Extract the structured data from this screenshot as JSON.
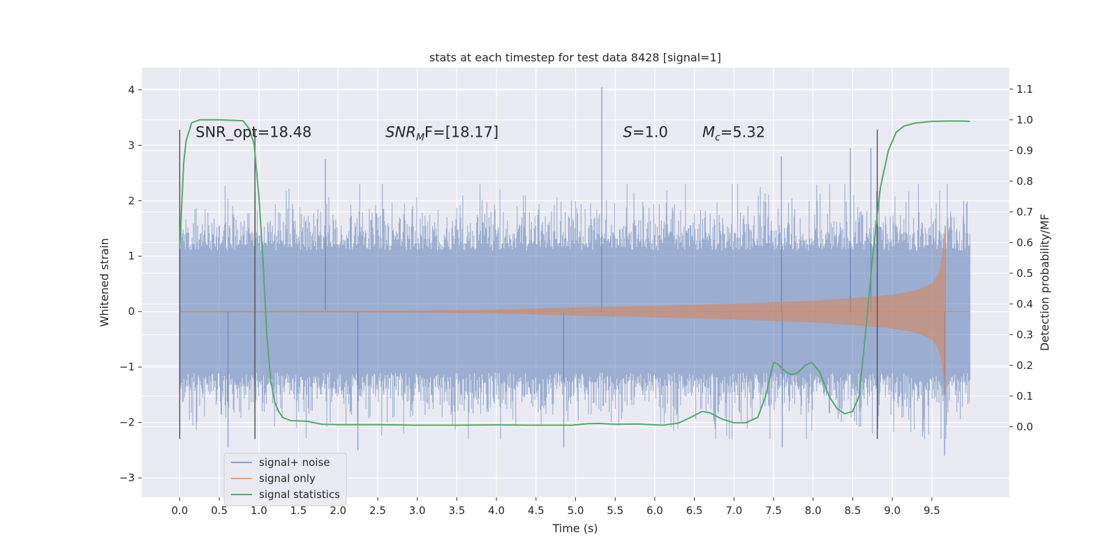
{
  "chart_data": {
    "type": "line",
    "title": "stats at each timestep for test data 8428 [signal=1]",
    "xlabel": "Time (s)",
    "ylabel": "Whitened strain",
    "y2label": "Detection probability/MF",
    "xlim": [
      -0.48,
      10.48
    ],
    "ylim": [
      -3.35,
      4.4
    ],
    "y2lim": [
      -0.23,
      1.17
    ],
    "xticks": [
      0.0,
      0.5,
      1.0,
      1.5,
      2.0,
      2.5,
      3.0,
      3.5,
      4.0,
      4.5,
      5.0,
      5.5,
      6.0,
      6.5,
      7.0,
      7.5,
      8.0,
      8.5,
      9.0,
      9.5
    ],
    "xtick_labels": [
      "0.0",
      "0.5",
      "1.0",
      "1.5",
      "2.0",
      "2.5",
      "3.0",
      "3.5",
      "4.0",
      "4.5",
      "5.0",
      "5.5",
      "6.0",
      "6.5",
      "7.0",
      "7.5",
      "8.0",
      "8.5",
      "9.0",
      "9.5"
    ],
    "yticks": [
      -3,
      -2,
      -1,
      0,
      1,
      2,
      3,
      4
    ],
    "ytick_labels": [
      "−3",
      "−2",
      "−1",
      "0",
      "1",
      "2",
      "3",
      "4"
    ],
    "y2ticks": [
      0.0,
      0.1,
      0.2,
      0.3,
      0.4,
      0.5,
      0.6,
      0.7,
      0.8,
      0.9,
      1.0,
      1.1
    ],
    "y2tick_labels": [
      "0.0",
      "0.1",
      "0.2",
      "0.3",
      "0.4",
      "0.5",
      "0.6",
      "0.7",
      "0.8",
      "0.9",
      "1.0",
      "1.1"
    ],
    "grid": true,
    "legend_position": "lower-left",
    "colors": {
      "noise": "#4c72b0",
      "signal": "#dd8452",
      "stats": "#55a868",
      "marker": "#555555",
      "background": "#eaeaf2",
      "grid": "#ffffff"
    },
    "series": [
      {
        "name": "signal+ noise",
        "kind": "noise-band",
        "t_range": [
          0.0,
          9.98
        ],
        "envelope_approx": [
          [
            0.0,
            -1.5,
            1.5
          ],
          [
            5.0,
            -1.5,
            1.5
          ],
          [
            9.98,
            -1.5,
            1.5
          ]
        ],
        "peaks": [
          [
            5.33,
            4.05
          ],
          [
            0.61,
            -2.45
          ],
          [
            2.25,
            -2.5
          ],
          [
            4.85,
            -2.45
          ],
          [
            7.61,
            -2.45
          ],
          [
            9.66,
            -2.6
          ],
          [
            1.84,
            2.75
          ],
          [
            8.73,
            2.95
          ],
          [
            8.47,
            2.95
          ],
          [
            7.6,
            2.8
          ]
        ]
      },
      {
        "name": "signal only",
        "kind": "chirp",
        "t_range": [
          0.0,
          9.98
        ],
        "merger_time": 9.67,
        "envelope": [
          [
            0.0,
            0.005
          ],
          [
            2.0,
            0.01
          ],
          [
            3.0,
            0.015
          ],
          [
            4.0,
            0.03
          ],
          [
            5.0,
            0.07
          ],
          [
            6.0,
            0.1
          ],
          [
            7.0,
            0.14
          ],
          [
            8.0,
            0.19
          ],
          [
            8.5,
            0.24
          ],
          [
            9.0,
            0.3
          ],
          [
            9.3,
            0.38
          ],
          [
            9.5,
            0.5
          ],
          [
            9.6,
            0.7
          ],
          [
            9.65,
            1.2
          ],
          [
            9.67,
            1.55
          ]
        ]
      },
      {
        "name": "signal statistics",
        "axis": "right",
        "points": [
          [
            0.0,
            0.58
          ],
          [
            0.05,
            0.86
          ],
          [
            0.08,
            0.93
          ],
          [
            0.15,
            0.99
          ],
          [
            0.25,
            1.0
          ],
          [
            0.5,
            1.0
          ],
          [
            0.8,
            0.997
          ],
          [
            0.88,
            0.97
          ],
          [
            0.94,
            0.92
          ],
          [
            1.0,
            0.75
          ],
          [
            1.05,
            0.55
          ],
          [
            1.1,
            0.3
          ],
          [
            1.15,
            0.15
          ],
          [
            1.2,
            0.08
          ],
          [
            1.25,
            0.05
          ],
          [
            1.3,
            0.03
          ],
          [
            1.4,
            0.02
          ],
          [
            1.6,
            0.018
          ],
          [
            1.8,
            0.008
          ],
          [
            2.0,
            0.007
          ],
          [
            2.5,
            0.007
          ],
          [
            3.0,
            0.005
          ],
          [
            3.5,
            0.005
          ],
          [
            4.0,
            0.006
          ],
          [
            4.5,
            0.005
          ],
          [
            4.95,
            0.005
          ],
          [
            5.15,
            0.01
          ],
          [
            5.3,
            0.011
          ],
          [
            5.5,
            0.008
          ],
          [
            5.8,
            0.009
          ],
          [
            6.1,
            0.005
          ],
          [
            6.3,
            0.012
          ],
          [
            6.45,
            0.03
          ],
          [
            6.6,
            0.05
          ],
          [
            6.7,
            0.045
          ],
          [
            6.85,
            0.025
          ],
          [
            7.0,
            0.013
          ],
          [
            7.15,
            0.013
          ],
          [
            7.3,
            0.03
          ],
          [
            7.4,
            0.1
          ],
          [
            7.5,
            0.21
          ],
          [
            7.55,
            0.205
          ],
          [
            7.65,
            0.18
          ],
          [
            7.72,
            0.17
          ],
          [
            7.8,
            0.175
          ],
          [
            7.9,
            0.2
          ],
          [
            7.98,
            0.21
          ],
          [
            8.08,
            0.18
          ],
          [
            8.2,
            0.1
          ],
          [
            8.3,
            0.06
          ],
          [
            8.4,
            0.042
          ],
          [
            8.5,
            0.05
          ],
          [
            8.58,
            0.1
          ],
          [
            8.66,
            0.3
          ],
          [
            8.75,
            0.55
          ],
          [
            8.85,
            0.78
          ],
          [
            8.95,
            0.9
          ],
          [
            9.05,
            0.96
          ],
          [
            9.15,
            0.98
          ],
          [
            9.3,
            0.99
          ],
          [
            9.5,
            0.995
          ],
          [
            9.7,
            0.996
          ],
          [
            9.9,
            0.996
          ],
          [
            9.98,
            0.995
          ]
        ]
      }
    ],
    "vertical_markers": [
      {
        "x": 0.0,
        "y_from": -2.3,
        "y_to": 3.28
      },
      {
        "x": 0.95,
        "y_from": -2.3,
        "y_to": 3.28
      },
      {
        "x": 8.81,
        "y_from": -2.3,
        "y_to": 3.28
      }
    ],
    "annotations": [
      {
        "text": "SNR_opt=18.48",
        "x": 0.2,
        "y": 3.25
      },
      {
        "prefix": "SNR",
        "sub": "M",
        "suffix": "F=[18.17]",
        "x": 2.6,
        "y": 3.25,
        "italic_prefix": true
      },
      {
        "prefix": "S",
        "suffix": "=1.0",
        "x": 5.6,
        "y": 3.25,
        "italic_prefix": true
      },
      {
        "prefix": "M",
        "sub": "c",
        "suffix": "=5.32",
        "x": 6.6,
        "y": 3.25,
        "italic_prefix": true
      }
    ]
  }
}
